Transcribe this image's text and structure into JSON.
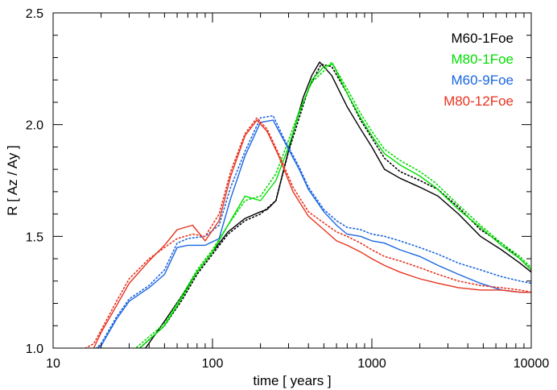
{
  "chart_data": {
    "type": "line",
    "title": "",
    "xlabel": "time [ years ]",
    "ylabel": "R [ Az / Ay ]",
    "xscale": "log",
    "xlim": [
      10,
      10000
    ],
    "ylim": [
      1.0,
      2.5
    ],
    "x_major_ticks": [
      10,
      100,
      1000,
      10000
    ],
    "x_tick_labels": [
      "10",
      "100",
      "1000",
      "10000"
    ],
    "y_major_ticks": [
      1.0,
      1.5,
      2.0,
      2.5
    ],
    "y_tick_labels": [
      "1.0",
      "1.5",
      "2.0",
      "2.5"
    ],
    "grid": false,
    "legend": {
      "placement": "top-right",
      "style": "colored text"
    },
    "series": [
      {
        "name": "M60-1Foe",
        "color": "#000000",
        "solid": [
          [
            20,
            0.98
          ],
          [
            38,
            1.0
          ],
          [
            50,
            1.12
          ],
          [
            65,
            1.24
          ],
          [
            80,
            1.34
          ],
          [
            100,
            1.43
          ],
          [
            125,
            1.52
          ],
          [
            160,
            1.58
          ],
          [
            200,
            1.61
          ],
          [
            220,
            1.62
          ],
          [
            250,
            1.66
          ],
          [
            280,
            1.8
          ],
          [
            320,
            1.96
          ],
          [
            370,
            2.12
          ],
          [
            420,
            2.22
          ],
          [
            470,
            2.28
          ],
          [
            560,
            2.22
          ],
          [
            700,
            2.08
          ],
          [
            850,
            1.98
          ],
          [
            1000,
            1.9
          ],
          [
            1200,
            1.8
          ],
          [
            1500,
            1.76
          ],
          [
            2000,
            1.72
          ],
          [
            2600,
            1.68
          ],
          [
            3500,
            1.6
          ],
          [
            4800,
            1.5
          ],
          [
            6500,
            1.44
          ],
          [
            8500,
            1.38
          ],
          [
            10000,
            1.34
          ]
        ],
        "dotted": [
          [
            20,
            0.98
          ],
          [
            35,
            1.0
          ],
          [
            50,
            1.1
          ],
          [
            65,
            1.22
          ],
          [
            80,
            1.33
          ],
          [
            100,
            1.42
          ],
          [
            125,
            1.51
          ],
          [
            160,
            1.57
          ],
          [
            200,
            1.6
          ],
          [
            250,
            1.66
          ],
          [
            300,
            1.88
          ],
          [
            400,
            2.16
          ],
          [
            480,
            2.27
          ],
          [
            560,
            2.26
          ],
          [
            700,
            2.14
          ],
          [
            850,
            2.02
          ],
          [
            1000,
            1.94
          ],
          [
            1200,
            1.85
          ],
          [
            1500,
            1.79
          ],
          [
            2000,
            1.75
          ],
          [
            2600,
            1.71
          ],
          [
            3500,
            1.63
          ],
          [
            4800,
            1.53
          ],
          [
            6500,
            1.47
          ],
          [
            8500,
            1.4
          ],
          [
            10000,
            1.35
          ]
        ]
      },
      {
        "name": "M80-1Foe",
        "color": "#00dd00",
        "solid": [
          [
            20,
            0.98
          ],
          [
            35,
            1.0
          ],
          [
            50,
            1.1
          ],
          [
            65,
            1.23
          ],
          [
            80,
            1.34
          ],
          [
            100,
            1.43
          ],
          [
            125,
            1.55
          ],
          [
            160,
            1.68
          ],
          [
            200,
            1.66
          ],
          [
            250,
            1.75
          ],
          [
            300,
            1.9
          ],
          [
            350,
            2.05
          ],
          [
            420,
            2.2
          ],
          [
            500,
            2.26
          ],
          [
            570,
            2.27
          ],
          [
            700,
            2.14
          ],
          [
            850,
            2.03
          ],
          [
            1000,
            1.95
          ],
          [
            1200,
            1.87
          ],
          [
            1500,
            1.82
          ],
          [
            2000,
            1.77
          ],
          [
            2500,
            1.72
          ],
          [
            3500,
            1.62
          ],
          [
            4800,
            1.54
          ],
          [
            6500,
            1.46
          ],
          [
            8500,
            1.4
          ],
          [
            10000,
            1.35
          ]
        ],
        "dotted": [
          [
            20,
            0.98
          ],
          [
            33,
            1.0
          ],
          [
            50,
            1.11
          ],
          [
            65,
            1.24
          ],
          [
            80,
            1.35
          ],
          [
            100,
            1.44
          ],
          [
            125,
            1.55
          ],
          [
            160,
            1.66
          ],
          [
            200,
            1.68
          ],
          [
            250,
            1.78
          ],
          [
            300,
            1.93
          ],
          [
            350,
            2.06
          ],
          [
            420,
            2.19
          ],
          [
            500,
            2.24
          ],
          [
            560,
            2.28
          ],
          [
            700,
            2.16
          ],
          [
            850,
            2.05
          ],
          [
            1000,
            1.97
          ],
          [
            1200,
            1.89
          ],
          [
            1500,
            1.84
          ],
          [
            2000,
            1.79
          ],
          [
            2500,
            1.74
          ],
          [
            3500,
            1.64
          ],
          [
            4800,
            1.55
          ],
          [
            6500,
            1.47
          ],
          [
            8500,
            1.41
          ],
          [
            10000,
            1.36
          ]
        ]
      },
      {
        "name": "M60-9Foe",
        "color": "#1a66e0",
        "solid": [
          [
            10,
            0.98
          ],
          [
            18,
            0.99
          ],
          [
            20,
            1.01
          ],
          [
            25,
            1.13
          ],
          [
            30,
            1.21
          ],
          [
            40,
            1.27
          ],
          [
            50,
            1.33
          ],
          [
            60,
            1.45
          ],
          [
            70,
            1.46
          ],
          [
            90,
            1.46
          ],
          [
            110,
            1.49
          ],
          [
            130,
            1.67
          ],
          [
            160,
            1.86
          ],
          [
            200,
            2.01
          ],
          [
            240,
            2.02
          ],
          [
            280,
            1.93
          ],
          [
            350,
            1.8
          ],
          [
            400,
            1.71
          ],
          [
            500,
            1.61
          ],
          [
            600,
            1.55
          ],
          [
            700,
            1.51
          ],
          [
            850,
            1.5
          ],
          [
            1000,
            1.48
          ],
          [
            1200,
            1.47
          ],
          [
            1500,
            1.44
          ],
          [
            2000,
            1.41
          ],
          [
            2600,
            1.37
          ],
          [
            3500,
            1.33
          ],
          [
            4800,
            1.29
          ],
          [
            6500,
            1.26
          ],
          [
            8500,
            1.25
          ],
          [
            10000,
            1.25
          ]
        ],
        "dotted": [
          [
            10,
            0.98
          ],
          [
            18,
            0.99
          ],
          [
            20,
            1.02
          ],
          [
            25,
            1.14
          ],
          [
            30,
            1.22
          ],
          [
            40,
            1.28
          ],
          [
            50,
            1.35
          ],
          [
            60,
            1.47
          ],
          [
            70,
            1.49
          ],
          [
            90,
            1.5
          ],
          [
            110,
            1.55
          ],
          [
            130,
            1.72
          ],
          [
            160,
            1.88
          ],
          [
            200,
            2.03
          ],
          [
            240,
            2.04
          ],
          [
            280,
            1.94
          ],
          [
            350,
            1.81
          ],
          [
            400,
            1.72
          ],
          [
            500,
            1.62
          ],
          [
            600,
            1.57
          ],
          [
            700,
            1.54
          ],
          [
            850,
            1.53
          ],
          [
            1000,
            1.51
          ],
          [
            1200,
            1.5
          ],
          [
            1500,
            1.48
          ],
          [
            2000,
            1.45
          ],
          [
            2600,
            1.42
          ],
          [
            3500,
            1.38
          ],
          [
            4800,
            1.35
          ],
          [
            6500,
            1.32
          ],
          [
            8500,
            1.3
          ],
          [
            10000,
            1.29
          ]
        ]
      },
      {
        "name": "M80-12Foe",
        "color": "#e8321e",
        "solid": [
          [
            10,
            0.98
          ],
          [
            16,
            0.99
          ],
          [
            18,
            1.0
          ],
          [
            20,
            1.07
          ],
          [
            25,
            1.19
          ],
          [
            30,
            1.29
          ],
          [
            40,
            1.39
          ],
          [
            50,
            1.46
          ],
          [
            60,
            1.53
          ],
          [
            75,
            1.55
          ],
          [
            90,
            1.48
          ],
          [
            110,
            1.57
          ],
          [
            130,
            1.77
          ],
          [
            160,
            1.95
          ],
          [
            190,
            2.02
          ],
          [
            220,
            1.97
          ],
          [
            260,
            1.86
          ],
          [
            320,
            1.7
          ],
          [
            400,
            1.59
          ],
          [
            500,
            1.53
          ],
          [
            600,
            1.48
          ],
          [
            700,
            1.46
          ],
          [
            850,
            1.43
          ],
          [
            1000,
            1.4
          ],
          [
            1200,
            1.37
          ],
          [
            1500,
            1.34
          ],
          [
            2000,
            1.31
          ],
          [
            2600,
            1.29
          ],
          [
            3500,
            1.27
          ],
          [
            4800,
            1.26
          ],
          [
            6500,
            1.26
          ],
          [
            8500,
            1.25
          ],
          [
            10000,
            1.25
          ]
        ],
        "dotted": [
          [
            10,
            0.98
          ],
          [
            15,
            0.99
          ],
          [
            18,
            1.02
          ],
          [
            20,
            1.08
          ],
          [
            25,
            1.21
          ],
          [
            30,
            1.31
          ],
          [
            40,
            1.4
          ],
          [
            50,
            1.45
          ],
          [
            60,
            1.49
          ],
          [
            75,
            1.51
          ],
          [
            90,
            1.5
          ],
          [
            110,
            1.6
          ],
          [
            130,
            1.79
          ],
          [
            160,
            1.96
          ],
          [
            190,
            2.03
          ],
          [
            220,
            1.98
          ],
          [
            260,
            1.87
          ],
          [
            320,
            1.72
          ],
          [
            400,
            1.61
          ],
          [
            500,
            1.56
          ],
          [
            600,
            1.52
          ],
          [
            700,
            1.5
          ],
          [
            850,
            1.47
          ],
          [
            1000,
            1.44
          ],
          [
            1200,
            1.41
          ],
          [
            1500,
            1.39
          ],
          [
            2000,
            1.36
          ],
          [
            2600,
            1.33
          ],
          [
            3500,
            1.3
          ],
          [
            4800,
            1.28
          ],
          [
            6500,
            1.27
          ],
          [
            8500,
            1.26
          ],
          [
            10000,
            1.25
          ]
        ]
      }
    ]
  }
}
